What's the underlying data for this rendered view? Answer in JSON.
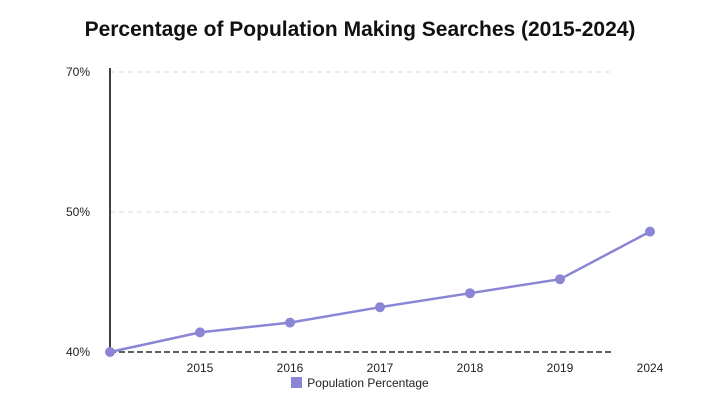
{
  "chart_data": {
    "type": "line",
    "title": "Percentage of Population Making Searches (2015-2024)",
    "xlabel": "",
    "ylabel": "",
    "categories": [
      "",
      "2015",
      "2016",
      "2017",
      "2018",
      "2019",
      "2024"
    ],
    "y_ticks": [
      "40%",
      "50%",
      "70%"
    ],
    "series": [
      {
        "name": "Population Percentage",
        "values": [
          40,
          41.4,
          42.1,
          43.2,
          44.2,
          45.2,
          48.6
        ]
      }
    ],
    "grid": true,
    "legend": "bottom",
    "colors": {
      "series": "#8b85d6",
      "axis": "#000000",
      "grid": "#d9d9d9"
    }
  }
}
